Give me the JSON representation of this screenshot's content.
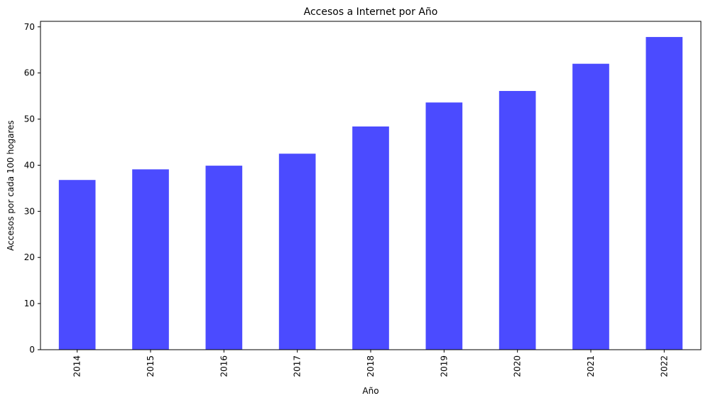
{
  "chart_data": {
    "type": "bar",
    "title": "Accesos a Internet por Año",
    "xlabel": "Año",
    "ylabel": "Accesos por cada 100 hogares",
    "categories": [
      "2014",
      "2015",
      "2016",
      "2017",
      "2018",
      "2019",
      "2020",
      "2021",
      "2022"
    ],
    "values": [
      36.8,
      39.1,
      39.9,
      42.5,
      48.4,
      53.6,
      56.1,
      62.0,
      67.8
    ],
    "ylim": [
      0,
      71.2
    ],
    "yticks": [
      0,
      10,
      20,
      30,
      40,
      50,
      60,
      70
    ],
    "grid": false,
    "bar_color": "#4b4bff"
  }
}
